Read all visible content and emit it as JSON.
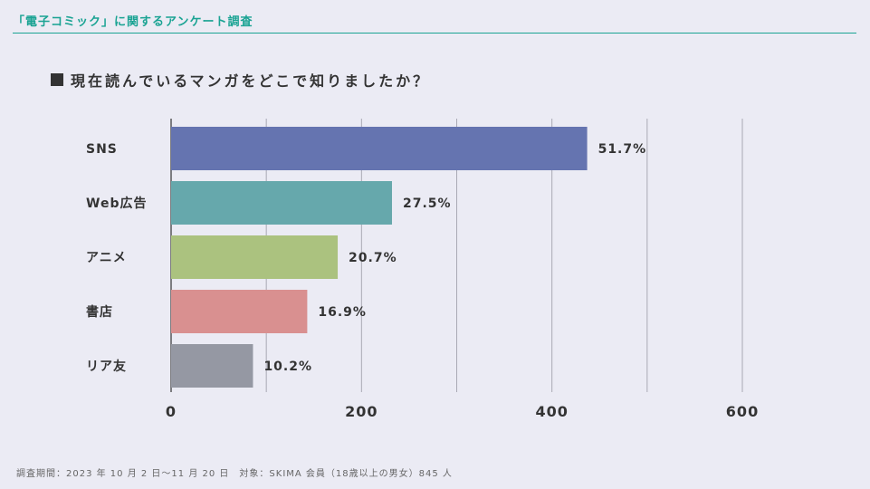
{
  "header": {
    "title": "「電子コミック」に関するアンケート調査",
    "accent_color": "#1aa393"
  },
  "question": {
    "marker": "square-icon",
    "text": "現在読んでいるマンガをどこで知りましたか？"
  },
  "footer": {
    "note": "調査期間：2023 年 10 月 2 日〜11 月 20 日　対象：SKIMA 会員（18歳以上の男女）845 人"
  },
  "chart_data": {
    "type": "bar",
    "orientation": "horizontal",
    "categories": [
      "SNS",
      "Web広告",
      "アニメ",
      "書店",
      "リア友"
    ],
    "values": [
      437,
      232,
      175,
      143,
      86
    ],
    "data_labels": [
      "51.7%",
      "27.5%",
      "20.7%",
      "16.9%",
      "10.2%"
    ],
    "colors": [
      "#6574b0",
      "#66a8ac",
      "#abc27f",
      "#d99090",
      "#9598a3"
    ],
    "xlim": [
      0,
      600
    ],
    "x_ticks": [
      0,
      200,
      400,
      600
    ],
    "x_gridlines": [
      100,
      200,
      300,
      400,
      500,
      600
    ],
    "grid": true,
    "legend": "none",
    "title": "",
    "xlabel": "",
    "ylabel": ""
  }
}
